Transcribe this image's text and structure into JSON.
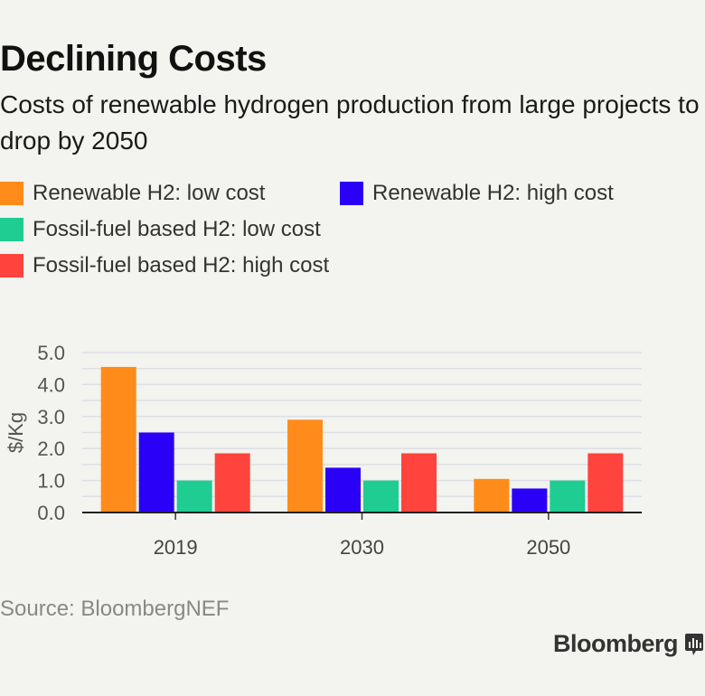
{
  "header": {
    "title": "Declining Costs",
    "subtitle": "Costs of renewable hydrogen production from large projects to drop by 2050"
  },
  "legend": [
    {
      "label": "Renewable H2: low cost",
      "color": "#ff8c1a"
    },
    {
      "label": "Renewable H2: high cost",
      "color": "#2b00f7"
    },
    {
      "label": "Fossil-fuel based H2: low cost",
      "color": "#1fcc92"
    },
    {
      "label": "Fossil-fuel based H2: high cost",
      "color": "#ff433d"
    }
  ],
  "footer": {
    "source": "Source: BloombergNEF",
    "brand": "Bloomberg"
  },
  "chart_data": {
    "type": "bar",
    "categories": [
      "2019",
      "2030",
      "2050"
    ],
    "series": [
      {
        "name": "Renewable H2: low cost",
        "values": [
          4.55,
          2.9,
          1.05
        ],
        "color": "#ff8c1a"
      },
      {
        "name": "Renewable H2: high cost",
        "values": [
          2.5,
          1.4,
          0.75
        ],
        "color": "#2b00f7"
      },
      {
        "name": "Fossil-fuel based H2: low cost",
        "values": [
          1.0,
          1.0,
          1.0
        ],
        "color": "#1fcc92"
      },
      {
        "name": "Fossil-fuel based H2: high cost",
        "values": [
          1.85,
          1.85,
          1.85
        ],
        "color": "#ff433d"
      }
    ],
    "ylabel": "$/Kg",
    "ylim": [
      0,
      5
    ],
    "yticks": [
      "0.0",
      "1.0",
      "2.0",
      "3.0",
      "4.0",
      "5.0"
    ],
    "grid": true,
    "legend_position": "top"
  }
}
